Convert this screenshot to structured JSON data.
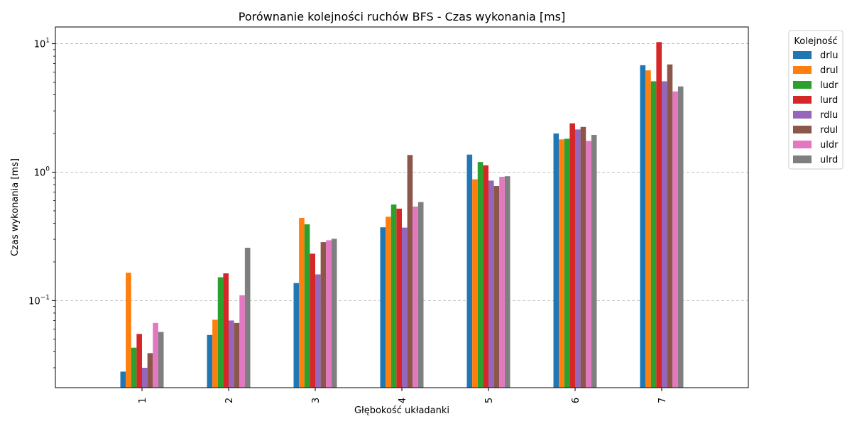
{
  "chart_data": {
    "type": "bar",
    "title": "Porównanie kolejności ruchów BFS - Czas wykonania [ms]",
    "xlabel": "Głębokość układanki",
    "ylabel": "Czas wykonania [ms]",
    "yscale": "log",
    "ylim": [
      0.021,
      13.5
    ],
    "grid": "y-major-dashed",
    "legend_title": "Kolejność",
    "legend_placement": "outside-top-right",
    "categories": [
      "1",
      "2",
      "3",
      "4",
      "5",
      "6",
      "7"
    ],
    "y_ticks": [
      {
        "value": 0.1,
        "base": "10",
        "exp": "−1"
      },
      {
        "value": 1,
        "base": "10",
        "exp": "0"
      },
      {
        "value": 10,
        "base": "10",
        "exp": "1"
      }
    ],
    "series": [
      {
        "name": "drlu",
        "color": "#1f77b4",
        "values": [
          0.028,
          0.054,
          0.137,
          0.372,
          1.37,
          2.0,
          6.8
        ]
      },
      {
        "name": "drul",
        "color": "#ff7f0e",
        "values": [
          0.165,
          0.071,
          0.44,
          0.45,
          0.88,
          1.8,
          6.2
        ]
      },
      {
        "name": "ludr",
        "color": "#2ca02c",
        "values": [
          0.043,
          0.152,
          0.393,
          0.56,
          1.2,
          1.82,
          5.1
        ]
      },
      {
        "name": "lurd",
        "color": "#d62728",
        "values": [
          0.055,
          0.163,
          0.232,
          0.52,
          1.13,
          2.4,
          10.3
        ]
      },
      {
        "name": "rdlu",
        "color": "#9467bd",
        "values": [
          0.03,
          0.07,
          0.16,
          0.37,
          0.86,
          2.15,
          5.1
        ]
      },
      {
        "name": "rdul",
        "color": "#8c564b",
        "values": [
          0.039,
          0.067,
          0.285,
          1.36,
          0.78,
          2.25,
          6.9
        ]
      },
      {
        "name": "uldr",
        "color": "#e377c2",
        "values": [
          0.067,
          0.11,
          0.295,
          0.54,
          0.92,
          1.75,
          4.25
        ]
      },
      {
        "name": "ulrd",
        "color": "#7f7f7f",
        "values": [
          0.057,
          0.258,
          0.303,
          0.585,
          0.93,
          1.95,
          4.65
        ]
      }
    ]
  }
}
